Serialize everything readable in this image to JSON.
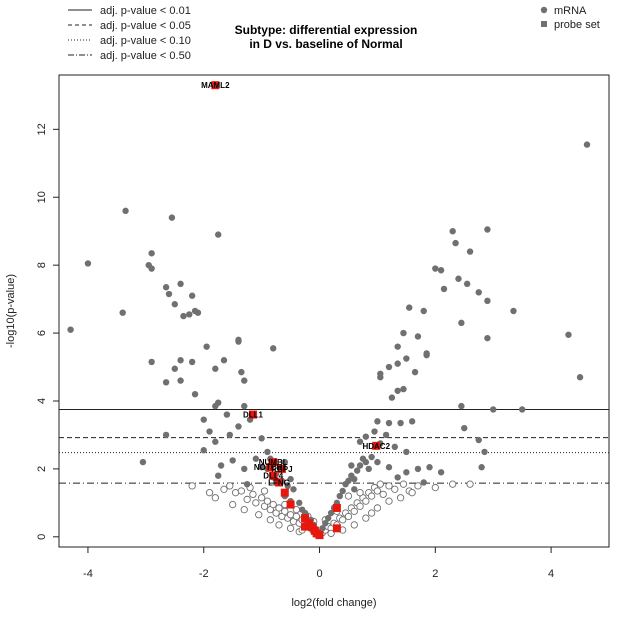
{
  "chart_data": {
    "type": "scatter",
    "title_line1": "Subtype: differential expression",
    "title_line2": "in D vs. baseline of Normal",
    "xlabel": "log2(fold change)",
    "ylabel": "-log10(p-value)",
    "xlim": [
      -4.5,
      5.0
    ],
    "ylim": [
      -0.3,
      13.6
    ],
    "x_ticks": [
      -4,
      -2,
      0,
      2,
      4
    ],
    "y_ticks": [
      0,
      2,
      4,
      6,
      8,
      10,
      12
    ],
    "grid": false,
    "threshold_legend": [
      {
        "label": "adj. p-value < 0.01",
        "style": "solid",
        "y": 3.75
      },
      {
        "label": "adj. p-value < 0.05",
        "style": "dashed",
        "y": 2.92
      },
      {
        "label": "adj. p-value < 0.10",
        "style": "dotted",
        "y": 2.48
      },
      {
        "label": "adj. p-value < 0.50",
        "style": "dotdash",
        "y": 1.58
      }
    ],
    "series_legend": [
      {
        "name": "mRNA",
        "marker": "circle",
        "color": "#707070"
      },
      {
        "name": "probe set",
        "marker": "square",
        "color": "#707070"
      }
    ],
    "colors": {
      "mrna": "#707070",
      "probe_set": "#e8170d"
    },
    "mrna_filled": [
      [
        4.62,
        11.55
      ],
      [
        -3.35,
        9.6
      ],
      [
        -2.55,
        9.4
      ],
      [
        -1.75,
        8.9
      ],
      [
        -4.0,
        8.05
      ],
      [
        -2.9,
        8.35
      ],
      [
        -2.95,
        8.0
      ],
      [
        -2.9,
        7.9
      ],
      [
        -2.6,
        7.15
      ],
      [
        -2.65,
        7.35
      ],
      [
        -2.4,
        7.45
      ],
      [
        -2.2,
        7.1
      ],
      [
        -2.25,
        6.55
      ],
      [
        -2.15,
        6.65
      ],
      [
        -2.1,
        6.6
      ],
      [
        -2.5,
        6.85
      ],
      [
        -2.35,
        6.5
      ],
      [
        -4.3,
        6.1
      ],
      [
        -3.4,
        6.6
      ],
      [
        -1.95,
        5.6
      ],
      [
        -1.4,
        5.75
      ],
      [
        -1.4,
        5.8
      ],
      [
        -2.9,
        5.15
      ],
      [
        -2.4,
        5.2
      ],
      [
        -2.5,
        4.95
      ],
      [
        -2.2,
        5.15
      ],
      [
        -1.65,
        5.2
      ],
      [
        -1.8,
        4.95
      ],
      [
        -1.35,
        4.85
      ],
      [
        -1.3,
        4.6
      ],
      [
        -2.65,
        4.55
      ],
      [
        -2.4,
        4.6
      ],
      [
        -2.15,
        4.2
      ],
      [
        -1.8,
        3.85
      ],
      [
        -1.75,
        3.95
      ],
      [
        -0.8,
        5.55
      ],
      [
        -1.6,
        3.6
      ],
      [
        -1.3,
        3.85
      ],
      [
        -2.0,
        3.45
      ],
      [
        -1.9,
        3.1
      ],
      [
        -1.55,
        3.0
      ],
      [
        -1.8,
        2.8
      ],
      [
        -2.0,
        2.55
      ],
      [
        -1.5,
        2.25
      ],
      [
        -1.7,
        2.1
      ],
      [
        -1.3,
        2.0
      ],
      [
        -1.1,
        2.3
      ],
      [
        -0.9,
        2.5
      ],
      [
        -2.65,
        3.0
      ],
      [
        -3.05,
        2.2
      ],
      [
        -1.4,
        3.25
      ],
      [
        -1.2,
        3.45
      ],
      [
        -1.0,
        2.9
      ],
      [
        -0.6,
        2.2
      ],
      [
        -1.75,
        1.8
      ],
      [
        -1.25,
        1.55
      ],
      [
        2.3,
        9.0
      ],
      [
        2.9,
        9.05
      ],
      [
        2.35,
        8.65
      ],
      [
        2.6,
        8.4
      ],
      [
        2.0,
        7.9
      ],
      [
        2.1,
        7.85
      ],
      [
        2.4,
        7.6
      ],
      [
        2.55,
        7.45
      ],
      [
        2.15,
        7.3
      ],
      [
        2.75,
        7.2
      ],
      [
        2.9,
        6.95
      ],
      [
        3.35,
        6.65
      ],
      [
        1.55,
        6.75
      ],
      [
        1.8,
        6.65
      ],
      [
        2.45,
        6.3
      ],
      [
        1.45,
        6.0
      ],
      [
        1.7,
        5.9
      ],
      [
        1.35,
        5.6
      ],
      [
        1.85,
        5.4
      ],
      [
        1.85,
        5.35
      ],
      [
        1.5,
        5.25
      ],
      [
        1.35,
        5.1
      ],
      [
        1.2,
        5.0
      ],
      [
        1.05,
        4.8
      ],
      [
        1.05,
        4.7
      ],
      [
        1.65,
        4.85
      ],
      [
        1.45,
        4.35
      ],
      [
        1.35,
        4.3
      ],
      [
        1.25,
        4.1
      ],
      [
        2.9,
        5.85
      ],
      [
        2.45,
        3.85
      ],
      [
        4.3,
        5.95
      ],
      [
        4.5,
        4.7
      ],
      [
        3.0,
        3.75
      ],
      [
        3.5,
        3.75
      ],
      [
        1.0,
        3.4
      ],
      [
        1.2,
        3.35
      ],
      [
        1.4,
        3.35
      ],
      [
        1.6,
        3.4
      ],
      [
        0.95,
        3.1
      ],
      [
        1.15,
        3.0
      ],
      [
        0.8,
        2.95
      ],
      [
        0.7,
        2.8
      ],
      [
        1.05,
        2.75
      ],
      [
        1.3,
        2.65
      ],
      [
        1.5,
        2.5
      ],
      [
        0.75,
        2.3
      ],
      [
        1.0,
        2.2
      ],
      [
        1.2,
        2.05
      ],
      [
        1.5,
        1.9
      ],
      [
        1.7,
        2.0
      ],
      [
        2.5,
        3.2
      ],
      [
        2.75,
        2.85
      ],
      [
        2.85,
        2.5
      ],
      [
        2.8,
        2.05
      ],
      [
        1.9,
        2.05
      ],
      [
        2.1,
        1.9
      ],
      [
        1.35,
        1.75
      ],
      [
        1.8,
        1.6
      ],
      [
        0.55,
        2.1
      ],
      [
        0.6,
        1.7
      ],
      [
        -1.0,
        2.05
      ],
      [
        -0.8,
        1.75
      ],
      [
        -0.85,
        2.3
      ],
      [
        -0.9,
        2.0
      ],
      [
        -0.65,
        1.65
      ],
      [
        -0.75,
        1.85
      ],
      [
        -0.5,
        1.7
      ],
      [
        -0.45,
        1.4
      ],
      [
        -0.55,
        1.5
      ],
      [
        -0.6,
        1.2
      ],
      [
        -0.5,
        1.05
      ],
      [
        -0.35,
        1.0
      ],
      [
        -0.3,
        0.8
      ],
      [
        -0.25,
        0.7
      ],
      [
        -0.15,
        0.5
      ],
      [
        -0.1,
        0.35
      ],
      [
        -0.08,
        0.25
      ],
      [
        0.05,
        0.25
      ],
      [
        0.1,
        0.4
      ],
      [
        0.15,
        0.55
      ],
      [
        0.2,
        0.7
      ],
      [
        0.25,
        0.85
      ],
      [
        0.3,
        1.0
      ],
      [
        0.35,
        1.2
      ],
      [
        0.4,
        1.35
      ],
      [
        0.45,
        1.55
      ],
      [
        0.5,
        1.65
      ],
      [
        0.55,
        1.8
      ],
      [
        0.65,
        1.95
      ],
      [
        0.7,
        2.1
      ],
      [
        0.8,
        2.2
      ],
      [
        0.9,
        2.35
      ],
      [
        0.85,
        2.0
      ],
      [
        0.6,
        1.4
      ]
    ],
    "mrna_open": [
      [
        -1.55,
        1.5
      ],
      [
        -1.45,
        1.3
      ],
      [
        -1.35,
        1.35
      ],
      [
        -1.25,
        1.1
      ],
      [
        -1.15,
        1.25
      ],
      [
        -1.1,
        1.0
      ],
      [
        -1.0,
        1.15
      ],
      [
        -0.95,
        0.9
      ],
      [
        -0.9,
        1.05
      ],
      [
        -0.85,
        0.8
      ],
      [
        -0.8,
        0.95
      ],
      [
        -0.75,
        0.7
      ],
      [
        -0.7,
        0.85
      ],
      [
        -0.65,
        0.6
      ],
      [
        -0.6,
        0.75
      ],
      [
        -0.55,
        0.55
      ],
      [
        -0.5,
        0.65
      ],
      [
        -0.45,
        0.45
      ],
      [
        -0.4,
        0.6
      ],
      [
        -0.35,
        0.4
      ],
      [
        -0.3,
        0.5
      ],
      [
        -0.25,
        0.3
      ],
      [
        -0.2,
        0.4
      ],
      [
        -0.15,
        0.25
      ],
      [
        -0.1,
        0.15
      ],
      [
        -0.05,
        0.1
      ],
      [
        0.0,
        0.05
      ],
      [
        0.05,
        0.12
      ],
      [
        0.1,
        0.2
      ],
      [
        0.15,
        0.3
      ],
      [
        0.2,
        0.25
      ],
      [
        0.25,
        0.4
      ],
      [
        0.3,
        0.35
      ],
      [
        0.35,
        0.55
      ],
      [
        0.4,
        0.5
      ],
      [
        0.45,
        0.7
      ],
      [
        0.5,
        0.6
      ],
      [
        0.55,
        0.85
      ],
      [
        0.6,
        0.75
      ],
      [
        0.65,
        1.0
      ],
      [
        0.7,
        0.9
      ],
      [
        0.75,
        1.15
      ],
      [
        0.8,
        1.05
      ],
      [
        0.85,
        1.3
      ],
      [
        0.9,
        1.2
      ],
      [
        0.95,
        1.45
      ],
      [
        1.0,
        1.35
      ],
      [
        1.05,
        1.55
      ],
      [
        1.1,
        1.25
      ],
      [
        1.2,
        1.5
      ],
      [
        1.3,
        1.4
      ],
      [
        1.45,
        1.55
      ],
      [
        1.55,
        1.35
      ],
      [
        1.7,
        1.5
      ],
      [
        -1.65,
        1.4
      ],
      [
        -1.8,
        1.15
      ],
      [
        -1.5,
        0.95
      ],
      [
        -1.3,
        0.8
      ],
      [
        -1.05,
        0.65
      ],
      [
        -0.85,
        0.5
      ],
      [
        -0.7,
        0.35
      ],
      [
        -0.5,
        0.25
      ],
      [
        -0.35,
        0.15
      ],
      [
        0.4,
        0.2
      ],
      [
        0.6,
        0.35
      ],
      [
        0.8,
        0.55
      ],
      [
        1.0,
        0.85
      ],
      [
        1.2,
        1.05
      ],
      [
        1.4,
        1.15
      ],
      [
        1.6,
        1.3
      ],
      [
        2.0,
        1.45
      ],
      [
        2.3,
        1.55
      ],
      [
        2.6,
        1.55
      ],
      [
        -2.2,
        1.5
      ],
      [
        -1.9,
        1.3
      ],
      [
        -0.95,
        1.35
      ],
      [
        -1.2,
        1.45
      ],
      [
        0.5,
        1.2
      ],
      [
        0.7,
        1.3
      ],
      [
        0.9,
        0.7
      ],
      [
        -0.6,
        0.95
      ],
      [
        -0.4,
        0.8
      ],
      [
        -0.2,
        0.6
      ],
      [
        0.3,
        0.75
      ],
      [
        0.1,
        0.5
      ],
      [
        -0.1,
        0.45
      ],
      [
        -0.3,
        0.2
      ],
      [
        0.2,
        0.1
      ]
    ],
    "probe_sets": [
      {
        "x": -1.8,
        "y": 13.3,
        "label": "MAML2"
      },
      {
        "x": -1.15,
        "y": 3.6,
        "label": "DLL1"
      },
      {
        "x": 0.98,
        "y": 2.68,
        "label": "HDAC2"
      },
      {
        "x": -0.8,
        "y": 2.2,
        "label": "NUMBL"
      },
      {
        "x": -0.85,
        "y": 2.05,
        "label": "NOTCH1"
      },
      {
        "x": -0.65,
        "y": 2.0,
        "label": "RBPJ"
      },
      {
        "x": -0.8,
        "y": 1.8,
        "label": "DLL4"
      },
      {
        "x": -0.7,
        "y": 1.6,
        "label": "LFNG"
      },
      {
        "x": -0.6,
        "y": 1.3,
        "label": ""
      },
      {
        "x": -0.5,
        "y": 0.95,
        "label": ""
      },
      {
        "x": -0.25,
        "y": 0.55,
        "label": ""
      },
      {
        "x": -0.18,
        "y": 0.4,
        "label": ""
      },
      {
        "x": -0.12,
        "y": 0.28,
        "label": ""
      },
      {
        "x": -0.08,
        "y": 0.18,
        "label": ""
      },
      {
        "x": -0.05,
        "y": 0.1,
        "label": ""
      },
      {
        "x": 0.0,
        "y": 0.05,
        "label": ""
      },
      {
        "x": 0.3,
        "y": 0.85,
        "label": ""
      },
      {
        "x": 0.3,
        "y": 0.25,
        "label": ""
      },
      {
        "x": -0.25,
        "y": 0.3,
        "label": ""
      }
    ]
  }
}
